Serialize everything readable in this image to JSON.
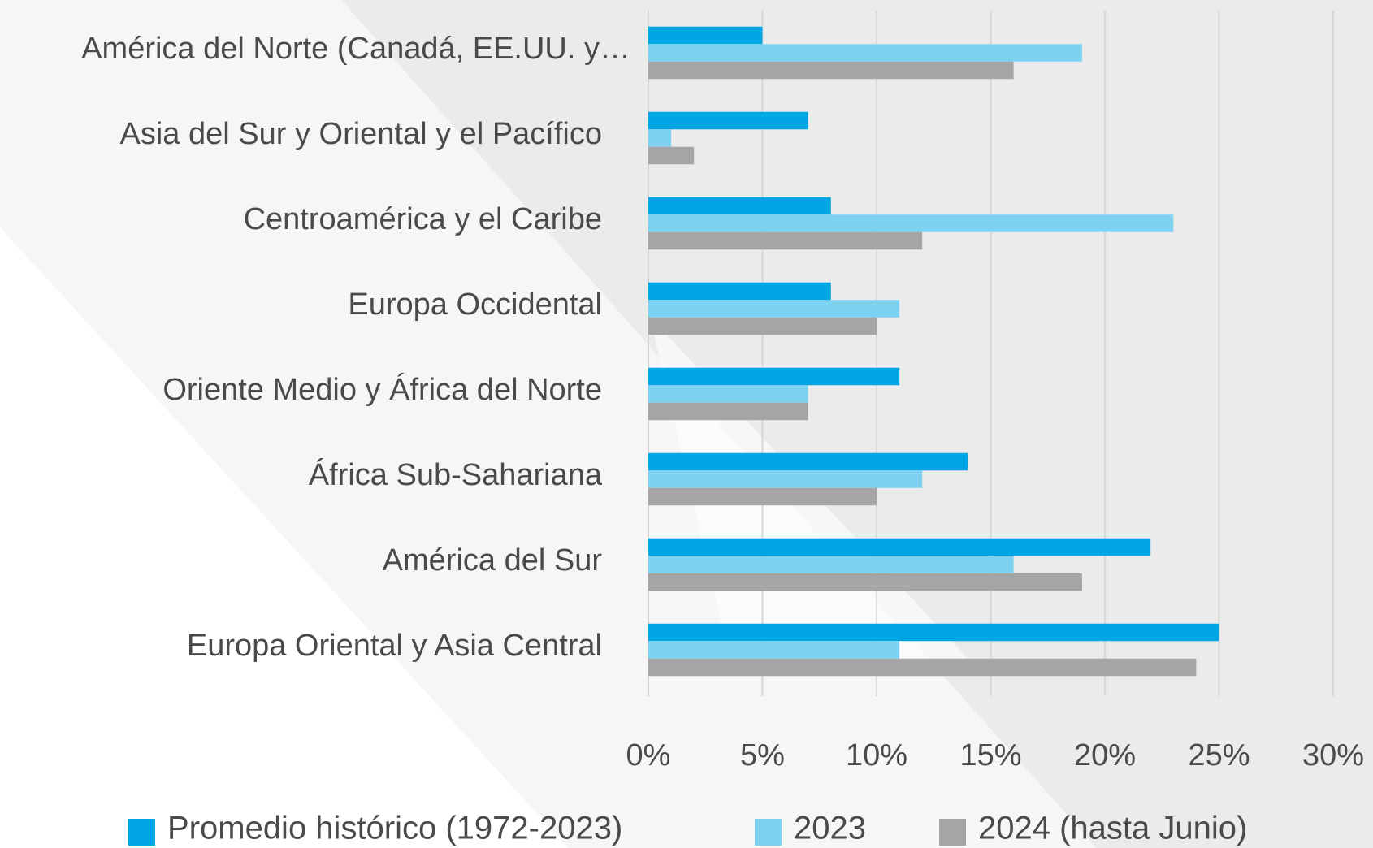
{
  "chart_data": {
    "type": "bar",
    "orientation": "horizontal",
    "categories": [
      "América del Norte (Canadá, EE.UU. y…",
      "Asia del Sur y Oriental y el Pacífico",
      "Centroamérica y el Caribe",
      "Europa Occidental",
      "Oriente Medio y África del Norte",
      "África Sub-Sahariana",
      "América del Sur",
      "Europa Oriental y Asia Central"
    ],
    "series": [
      {
        "name": "Promedio histórico (1972-2023)",
        "color": "#00a6e3",
        "values": [
          5,
          7,
          8,
          8,
          11,
          14,
          22,
          25
        ]
      },
      {
        "name": "2023",
        "color": "#7dd1f1",
        "values": [
          19,
          1,
          23,
          11,
          7,
          12,
          16,
          11
        ]
      },
      {
        "name": "2024 (hasta Junio)",
        "color": "#a5a5a5",
        "values": [
          16,
          2,
          12,
          10,
          7,
          10,
          19,
          24
        ]
      }
    ],
    "xlim": [
      0,
      30
    ],
    "xticks": [
      {
        "value": 0,
        "label": "0%"
      },
      {
        "value": 5,
        "label": "5%"
      },
      {
        "value": 10,
        "label": "10%"
      },
      {
        "value": 15,
        "label": "15%"
      },
      {
        "value": 20,
        "label": "20%"
      },
      {
        "value": 25,
        "label": "25%"
      },
      {
        "value": 30,
        "label": "30%"
      }
    ],
    "grid": true,
    "legend": "bottom"
  }
}
